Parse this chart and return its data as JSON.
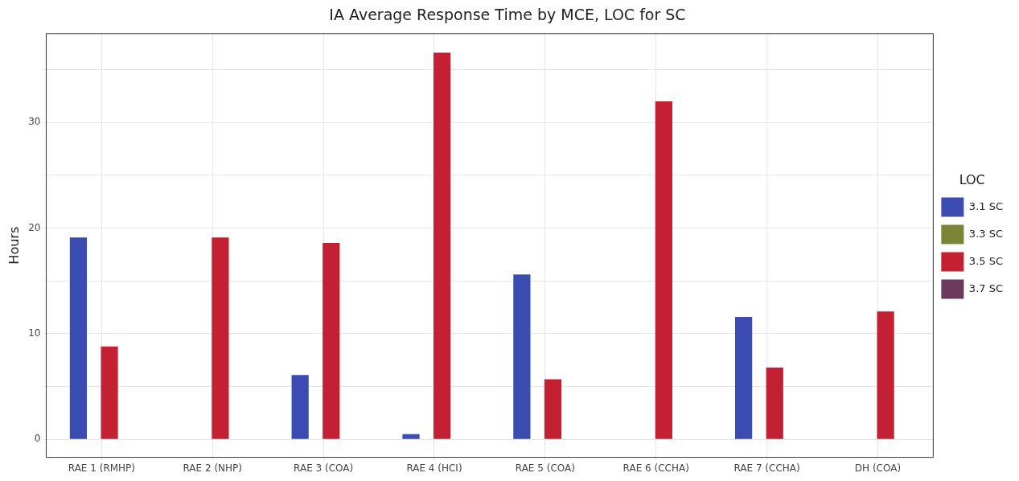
{
  "chart_data": {
    "type": "bar",
    "title": "IA Average Response Time by MCE, LOC for SC",
    "ylabel": "Hours",
    "legend_title": "LOC",
    "categories": [
      "RAE 1 (RMHP)",
      "RAE 2 (NHP)",
      "RAE 3 (COA)",
      "RAE 4 (HCI)",
      "RAE 5 (COA)",
      "RAE 6 (CCHA)",
      "RAE 7 (CCHA)",
      "DH (COA)"
    ],
    "series": [
      {
        "name": "3.1 SC",
        "color": "#3a4cb0",
        "values": [
          19.1,
          null,
          6.1,
          0.5,
          15.6,
          null,
          11.6,
          null
        ]
      },
      {
        "name": "3.3 SC",
        "color": "#7a8536",
        "values": [
          null,
          null,
          null,
          null,
          null,
          null,
          null,
          null
        ]
      },
      {
        "name": "3.5 SC",
        "color": "#c42033",
        "values": [
          8.8,
          19.1,
          18.6,
          36.6,
          5.7,
          32.0,
          6.8,
          12.1
        ]
      },
      {
        "name": "3.7 SC",
        "color": "#6b3a5e",
        "values": [
          null,
          null,
          null,
          null,
          null,
          null,
          null,
          null
        ]
      }
    ],
    "ylim": [
      -1.7,
      38.4
    ],
    "yticks": [
      0,
      {
        "value": 5,
        "label": null
      },
      10,
      {
        "value": 15,
        "label": null
      },
      20,
      {
        "value": 25,
        "label": null
      },
      30,
      {
        "value": 35,
        "label": null
      }
    ],
    "grid": true,
    "legend": "right"
  }
}
